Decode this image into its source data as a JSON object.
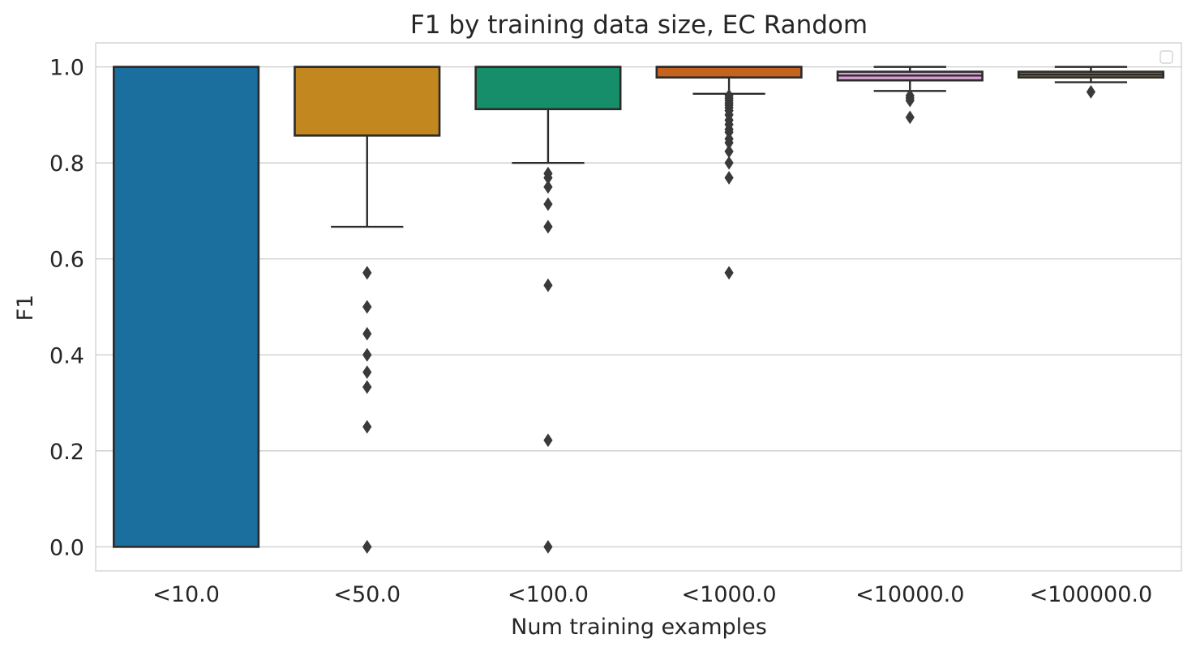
{
  "chart_data": {
    "type": "boxplot",
    "title": "F1 by training data size, EC Random",
    "xlabel": "Num training examples",
    "ylabel": "F1",
    "ylim": [
      -0.05,
      1.05
    ],
    "yticks": [
      0.0,
      0.2,
      0.4,
      0.6,
      0.8,
      1.0
    ],
    "ytick_labels": [
      "0.0",
      "0.2",
      "0.4",
      "0.6",
      "0.8",
      "1.0"
    ],
    "grid": true,
    "legend": {
      "position": "top-right",
      "entries": []
    },
    "categories": [
      "<10.0",
      "<50.0",
      "<100.0",
      "<1000.0",
      "<10000.0",
      "<100000.0"
    ],
    "boxes": [
      {
        "category": "<10.0",
        "color": "#1a6f9f",
        "q1": 0.0,
        "median": 1.0,
        "q3": 1.0,
        "whisker_low": 0.0,
        "whisker_high": 1.0,
        "outliers": []
      },
      {
        "category": "<50.0",
        "color": "#c3871f",
        "q1": 0.857,
        "median": 1.0,
        "q3": 1.0,
        "whisker_low": 0.667,
        "whisker_high": 1.0,
        "outliers": [
          0.571,
          0.571,
          0.5,
          0.5,
          0.444,
          0.4,
          0.4,
          0.364,
          0.333,
          0.333,
          0.25,
          0.0,
          0.0,
          0.0
        ]
      },
      {
        "category": "<100.0",
        "color": "#178e6a",
        "q1": 0.912,
        "median": 1.0,
        "q3": 1.0,
        "whisker_low": 0.8,
        "whisker_high": 1.0,
        "outliers": [
          0.778,
          0.769,
          0.75,
          0.714,
          0.667,
          0.667,
          0.545,
          0.222,
          0.0
        ]
      },
      {
        "category": "<1000.0",
        "color": "#c5631e",
        "q1": 0.978,
        "median": 1.0,
        "q3": 1.0,
        "whisker_low": 0.944,
        "whisker_high": 1.0,
        "outliers": [
          0.94,
          0.935,
          0.93,
          0.925,
          0.92,
          0.915,
          0.909,
          0.9,
          0.889,
          0.88,
          0.87,
          0.864,
          0.85,
          0.842,
          0.824,
          0.8,
          0.769,
          0.571
        ]
      },
      {
        "category": "<10000.0",
        "color": "#d4a0cf",
        "q1": 0.972,
        "median": 0.982,
        "q3": 0.99,
        "whisker_low": 0.95,
        "whisker_high": 1.0,
        "outliers": [
          0.94,
          0.935,
          0.93,
          0.895
        ]
      },
      {
        "category": "<100000.0",
        "color": "#8f6f3a",
        "q1": 0.978,
        "median": 0.984,
        "q3": 0.99,
        "whisker_low": 0.968,
        "whisker_high": 1.0,
        "outliers": [
          0.948
        ]
      }
    ]
  }
}
